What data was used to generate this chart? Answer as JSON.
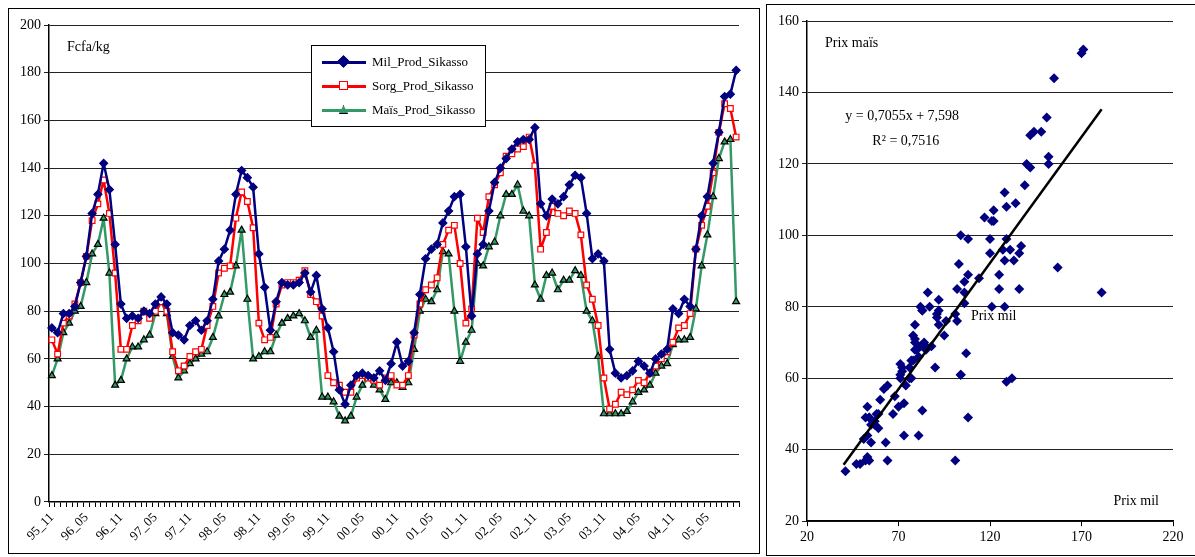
{
  "chart_data": [
    {
      "type": "line",
      "ylabel": "Fcfa/kg",
      "legend": "top",
      "grid": "y",
      "ylim": [
        0,
        200
      ],
      "yticks": [
        0,
        20,
        40,
        60,
        80,
        100,
        120,
        140,
        160,
        180,
        200
      ],
      "categories": [
        "95_11",
        null,
        null,
        null,
        null,
        null,
        "96_05",
        null,
        null,
        null,
        null,
        null,
        "96_11",
        null,
        null,
        null,
        null,
        null,
        "97_05",
        null,
        null,
        null,
        null,
        null,
        "97_11",
        null,
        null,
        null,
        null,
        null,
        "98_05",
        null,
        null,
        null,
        null,
        null,
        "98_11",
        null,
        null,
        null,
        null,
        null,
        "99_05",
        null,
        null,
        null,
        null,
        null,
        "99_11",
        null,
        null,
        null,
        null,
        null,
        "00_05",
        null,
        null,
        null,
        null,
        null,
        "00_11",
        null,
        null,
        null,
        null,
        null,
        "01_05",
        null,
        null,
        null,
        null,
        null,
        "01_11",
        null,
        null,
        null,
        null,
        null,
        "02_05",
        null,
        null,
        null,
        null,
        null,
        "02_11",
        null,
        null,
        null,
        null,
        null,
        "03_05",
        null,
        null,
        null,
        null,
        null,
        "03_11",
        null,
        null,
        null,
        null,
        null,
        "04_05",
        null,
        null,
        null,
        null,
        null,
        "04_11",
        null,
        null,
        null,
        null,
        null,
        "05_05",
        null,
        null,
        null,
        null,
        null
      ],
      "series": [
        {
          "name": "Mil_Prod_Sikasso",
          "color": "#000080",
          "marker": "diamond",
          "values": [
            73,
            71,
            79,
            79,
            82,
            92,
            103,
            121,
            129,
            142,
            131,
            108,
            83,
            77,
            78,
            77,
            80,
            79,
            83,
            86,
            83,
            71,
            70,
            68,
            74,
            76,
            72,
            76,
            85,
            101,
            106,
            114,
            129,
            139,
            136,
            132,
            104,
            90,
            72,
            84,
            92,
            91,
            91,
            92,
            96,
            88,
            95,
            81,
            73,
            63,
            47,
            41,
            49,
            53,
            54,
            53,
            52,
            55,
            51,
            58,
            67,
            57,
            59,
            71,
            87,
            102,
            106,
            108,
            117,
            122,
            128,
            129,
            107,
            78,
            104,
            108,
            122,
            134,
            140,
            144,
            148,
            151,
            152,
            152,
            157,
            125,
            120,
            127,
            125,
            128,
            133,
            137,
            136,
            121,
            102,
            104,
            101,
            64,
            54,
            52,
            53,
            55,
            59,
            57,
            54,
            60,
            62,
            64,
            81,
            79,
            85,
            82,
            106,
            120,
            128,
            142,
            155,
            170,
            171,
            181
          ]
        },
        {
          "name": "Sorg_Prod_Sikasso",
          "color": "#ff0000",
          "marker": "square",
          "values": [
            68,
            62,
            75,
            78,
            83,
            92,
            103,
            118,
            125,
            135,
            121,
            96,
            64,
            64,
            74,
            76,
            80,
            77,
            80,
            84,
            80,
            63,
            55,
            57,
            61,
            63,
            64,
            74,
            82,
            96,
            98,
            99,
            119,
            130,
            126,
            115,
            75,
            68,
            69,
            83,
            91,
            92,
            92,
            93,
            97,
            87,
            84,
            78,
            53,
            50,
            49,
            46,
            46,
            52,
            53,
            52,
            51,
            49,
            52,
            53,
            49,
            49,
            53,
            70,
            83,
            89,
            91,
            94,
            108,
            114,
            116,
            100,
            75,
            81,
            119,
            113,
            128,
            133,
            138,
            145,
            146,
            148,
            149,
            153,
            141,
            106,
            113,
            124,
            121,
            120,
            122,
            121,
            112,
            91,
            85,
            74,
            52,
            39,
            41,
            46,
            45,
            47,
            51,
            50,
            54,
            57,
            60,
            63,
            67,
            73,
            74,
            79,
            106,
            116,
            124,
            138,
            155,
            167,
            165,
            153
          ]
        },
        {
          "name": "Maïs_Prod_Sikasso",
          "color": "#339966",
          "marker": "triangle",
          "values": [
            53,
            60,
            71,
            75,
            80,
            82,
            92,
            104,
            108,
            119,
            96,
            49,
            51,
            60,
            65,
            65,
            68,
            70,
            79,
            84,
            79,
            61,
            52,
            55,
            58,
            60,
            62,
            63,
            69,
            78,
            87,
            88,
            99,
            114,
            85,
            60,
            61,
            63,
            63,
            70,
            75,
            77,
            78,
            79,
            76,
            69,
            72,
            44,
            44,
            42,
            36,
            34,
            36,
            44,
            49,
            52,
            49,
            47,
            43,
            50,
            50,
            48,
            50,
            64,
            80,
            85,
            84,
            89,
            105,
            104,
            80,
            59,
            67,
            72,
            100,
            99,
            107,
            109,
            120,
            129,
            129,
            133,
            122,
            120,
            91,
            85,
            95,
            96,
            89,
            93,
            93,
            97,
            95,
            80,
            76,
            61,
            37,
            37,
            37,
            37,
            38,
            42,
            46,
            47,
            49,
            54,
            57,
            58,
            66,
            68,
            68,
            69,
            81,
            99,
            112,
            128,
            144,
            151,
            152,
            84
          ]
        }
      ]
    },
    {
      "type": "scatter",
      "xlabel": "Prix mil",
      "ylabel": "Prix maïs",
      "grid": "y",
      "xlim": [
        20,
        220
      ],
      "xticks": [
        20,
        70,
        120,
        170,
        220
      ],
      "ylim": [
        20,
        160
      ],
      "yticks": [
        20,
        40,
        60,
        80,
        100,
        120,
        140,
        160
      ],
      "annotations": [
        "y = 0,7055x + 7,598",
        "R² = 0,7516",
        "Prix mil"
      ],
      "series": [
        {
          "type": "scatter",
          "color": "#000080",
          "marker": "diamond",
          "x": [
            73,
            71,
            79,
            79,
            82,
            92,
            103,
            121,
            129,
            142,
            131,
            108,
            83,
            77,
            78,
            77,
            80,
            79,
            83,
            86,
            83,
            71,
            70,
            68,
            74,
            76,
            72,
            76,
            85,
            101,
            106,
            114,
            129,
            139,
            136,
            132,
            104,
            90,
            72,
            84,
            92,
            91,
            91,
            92,
            96,
            88,
            95,
            81,
            73,
            63,
            47,
            41,
            49,
            53,
            54,
            53,
            52,
            55,
            51,
            58,
            67,
            57,
            59,
            71,
            87,
            102,
            106,
            108,
            117,
            122,
            128,
            129,
            107,
            78,
            104,
            108,
            122,
            134,
            140,
            144,
            148,
            151,
            152,
            152,
            157,
            125,
            120,
            127,
            125,
            128,
            133,
            137,
            136,
            121,
            102,
            104,
            101,
            64,
            54,
            52,
            53,
            55,
            59,
            57,
            54,
            60,
            62,
            64,
            81,
            79,
            85,
            82,
            106,
            120,
            128,
            142,
            155,
            170,
            171,
            181
          ],
          "values": [
            53,
            60,
            71,
            75,
            80,
            82,
            92,
            104,
            108,
            119,
            96,
            49,
            51,
            60,
            65,
            65,
            68,
            70,
            79,
            84,
            79,
            61,
            52,
            55,
            58,
            60,
            62,
            63,
            69,
            78,
            87,
            88,
            99,
            114,
            85,
            60,
            61,
            63,
            63,
            70,
            75,
            77,
            78,
            79,
            76,
            69,
            72,
            44,
            44,
            42,
            36,
            34,
            36,
            44,
            49,
            52,
            49,
            47,
            43,
            50,
            50,
            48,
            50,
            64,
            80,
            85,
            84,
            89,
            105,
            104,
            80,
            59,
            67,
            72,
            100,
            99,
            107,
            109,
            120,
            129,
            129,
            133,
            122,
            120,
            91,
            85,
            95,
            96,
            89,
            93,
            93,
            97,
            95,
            80,
            76,
            61,
            37,
            37,
            37,
            37,
            38,
            42,
            46,
            47,
            49,
            54,
            57,
            58,
            66,
            68,
            68,
            69,
            81,
            99,
            112,
            128,
            144,
            151,
            152,
            84
          ]
        },
        {
          "type": "line",
          "color": "#000000",
          "marker": "none",
          "x": [
            40,
            181
          ],
          "values": [
            35.8,
            135.3
          ]
        }
      ]
    }
  ]
}
